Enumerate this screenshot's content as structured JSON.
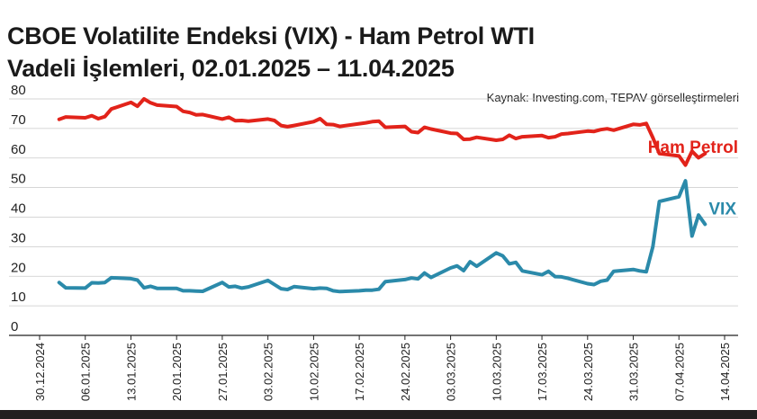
{
  "title_line1": "CBOE Volatilite Endeksi (VIX) - Ham Petrol WTI",
  "title_line2": "Vadeli İşlemleri, 02.01.2025 – 11.04.2025",
  "source": "Kaynak: Investing.com, TEPAV görselleştirmeleri",
  "colors": {
    "ham_petrol": "#e2231a",
    "vix": "#2b8aaa",
    "grid": "#c9c9c9",
    "axis": "#222222"
  },
  "chart_data": {
    "type": "line",
    "ylim": [
      0,
      80
    ],
    "yticks": [
      0,
      10,
      20,
      30,
      40,
      50,
      60,
      70,
      80
    ],
    "xlim": [
      "2024-12-30",
      "2025-04-14"
    ],
    "xticks": [
      "30.12.2024",
      "06.01.2025",
      "13.01.2025",
      "20.01.2025",
      "27.01.2025",
      "03.02.2025",
      "10.02.2025",
      "17.02.2025",
      "24.02.2025",
      "03.03.2025",
      "10.03.2025",
      "17.03.2025",
      "24.03.2025",
      "31.03.2025",
      "07.04.2025",
      "14.04.2025"
    ],
    "series": [
      {
        "name": "Ham Petrol",
        "color_key": "ham_petrol",
        "x": [
          "2025-01-02",
          "2025-01-03",
          "2025-01-06",
          "2025-01-07",
          "2025-01-08",
          "2025-01-09",
          "2025-01-10",
          "2025-01-13",
          "2025-01-14",
          "2025-01-15",
          "2025-01-16",
          "2025-01-17",
          "2025-01-20",
          "2025-01-21",
          "2025-01-22",
          "2025-01-23",
          "2025-01-24",
          "2025-01-27",
          "2025-01-28",
          "2025-01-29",
          "2025-01-30",
          "2025-01-31",
          "2025-02-03",
          "2025-02-04",
          "2025-02-05",
          "2025-02-06",
          "2025-02-07",
          "2025-02-10",
          "2025-02-11",
          "2025-02-12",
          "2025-02-13",
          "2025-02-14",
          "2025-02-17",
          "2025-02-18",
          "2025-02-19",
          "2025-02-20",
          "2025-02-21",
          "2025-02-24",
          "2025-02-25",
          "2025-02-26",
          "2025-02-27",
          "2025-02-28",
          "2025-03-03",
          "2025-03-04",
          "2025-03-05",
          "2025-03-06",
          "2025-03-07",
          "2025-03-10",
          "2025-03-11",
          "2025-03-12",
          "2025-03-13",
          "2025-03-14",
          "2025-03-17",
          "2025-03-18",
          "2025-03-19",
          "2025-03-20",
          "2025-03-21",
          "2025-03-24",
          "2025-03-25",
          "2025-03-26",
          "2025-03-27",
          "2025-03-28",
          "2025-03-31",
          "2025-04-01",
          "2025-04-02",
          "2025-04-03",
          "2025-04-04",
          "2025-04-07",
          "2025-04-08",
          "2025-04-09",
          "2025-04-10",
          "2025-04-11"
        ],
        "values": [
          73.1,
          73.9,
          73.6,
          74.3,
          73.3,
          74.0,
          76.6,
          78.8,
          77.5,
          80.0,
          78.7,
          77.9,
          77.4,
          75.8,
          75.4,
          74.6,
          74.7,
          73.2,
          73.8,
          72.6,
          72.7,
          72.5,
          73.2,
          72.7,
          71.0,
          70.6,
          71.0,
          72.3,
          73.3,
          71.4,
          71.3,
          70.7,
          71.6,
          71.9,
          72.3,
          72.5,
          70.4,
          70.7,
          68.9,
          68.6,
          70.4,
          69.8,
          68.4,
          68.3,
          66.3,
          66.4,
          67.0,
          66.0,
          66.3,
          67.7,
          66.6,
          67.2,
          67.6,
          66.9,
          67.2,
          68.1,
          68.3,
          69.1,
          69.0,
          69.6,
          69.9,
          69.4,
          71.4,
          71.2,
          71.7,
          66.9,
          61.5,
          60.7,
          57.6,
          62.3,
          60.1,
          61.5
        ]
      },
      {
        "name": "VIX",
        "color_key": "vix",
        "x": [
          "2025-01-02",
          "2025-01-03",
          "2025-01-06",
          "2025-01-07",
          "2025-01-08",
          "2025-01-09",
          "2025-01-10",
          "2025-01-13",
          "2025-01-14",
          "2025-01-15",
          "2025-01-16",
          "2025-01-17",
          "2025-01-20",
          "2025-01-21",
          "2025-01-22",
          "2025-01-23",
          "2025-01-24",
          "2025-01-27",
          "2025-01-28",
          "2025-01-29",
          "2025-01-30",
          "2025-01-31",
          "2025-02-03",
          "2025-02-04",
          "2025-02-05",
          "2025-02-06",
          "2025-02-07",
          "2025-02-10",
          "2025-02-11",
          "2025-02-12",
          "2025-02-13",
          "2025-02-14",
          "2025-02-17",
          "2025-02-18",
          "2025-02-19",
          "2025-02-20",
          "2025-02-21",
          "2025-02-24",
          "2025-02-25",
          "2025-02-26",
          "2025-02-27",
          "2025-02-28",
          "2025-03-03",
          "2025-03-04",
          "2025-03-05",
          "2025-03-06",
          "2025-03-07",
          "2025-03-10",
          "2025-03-11",
          "2025-03-12",
          "2025-03-13",
          "2025-03-14",
          "2025-03-17",
          "2025-03-18",
          "2025-03-19",
          "2025-03-20",
          "2025-03-21",
          "2025-03-24",
          "2025-03-25",
          "2025-03-26",
          "2025-03-27",
          "2025-03-28",
          "2025-03-31",
          "2025-04-01",
          "2025-04-02",
          "2025-04-03",
          "2025-04-04",
          "2025-04-07",
          "2025-04-08",
          "2025-04-09",
          "2025-04-10",
          "2025-04-11"
        ],
        "values": [
          17.9,
          16.1,
          16.0,
          17.8,
          17.7,
          17.9,
          19.5,
          19.2,
          18.7,
          16.1,
          16.6,
          15.9,
          15.9,
          15.1,
          15.1,
          15.0,
          14.9,
          17.9,
          16.4,
          16.6,
          16.0,
          16.4,
          18.6,
          17.2,
          15.8,
          15.5,
          16.5,
          15.8,
          16.0,
          15.9,
          15.1,
          14.8,
          15.1,
          15.3,
          15.3,
          15.6,
          18.2,
          18.9,
          19.4,
          19.1,
          21.1,
          19.6,
          22.8,
          23.5,
          21.9,
          24.9,
          23.4,
          27.9,
          26.9,
          24.2,
          24.7,
          21.8,
          20.5,
          21.7,
          19.9,
          19.8,
          19.3,
          17.5,
          17.2,
          18.3,
          18.7,
          21.7,
          22.3,
          21.8,
          21.5,
          30.0,
          45.3,
          46.9,
          52.3,
          33.6,
          40.7,
          37.6
        ]
      }
    ]
  }
}
